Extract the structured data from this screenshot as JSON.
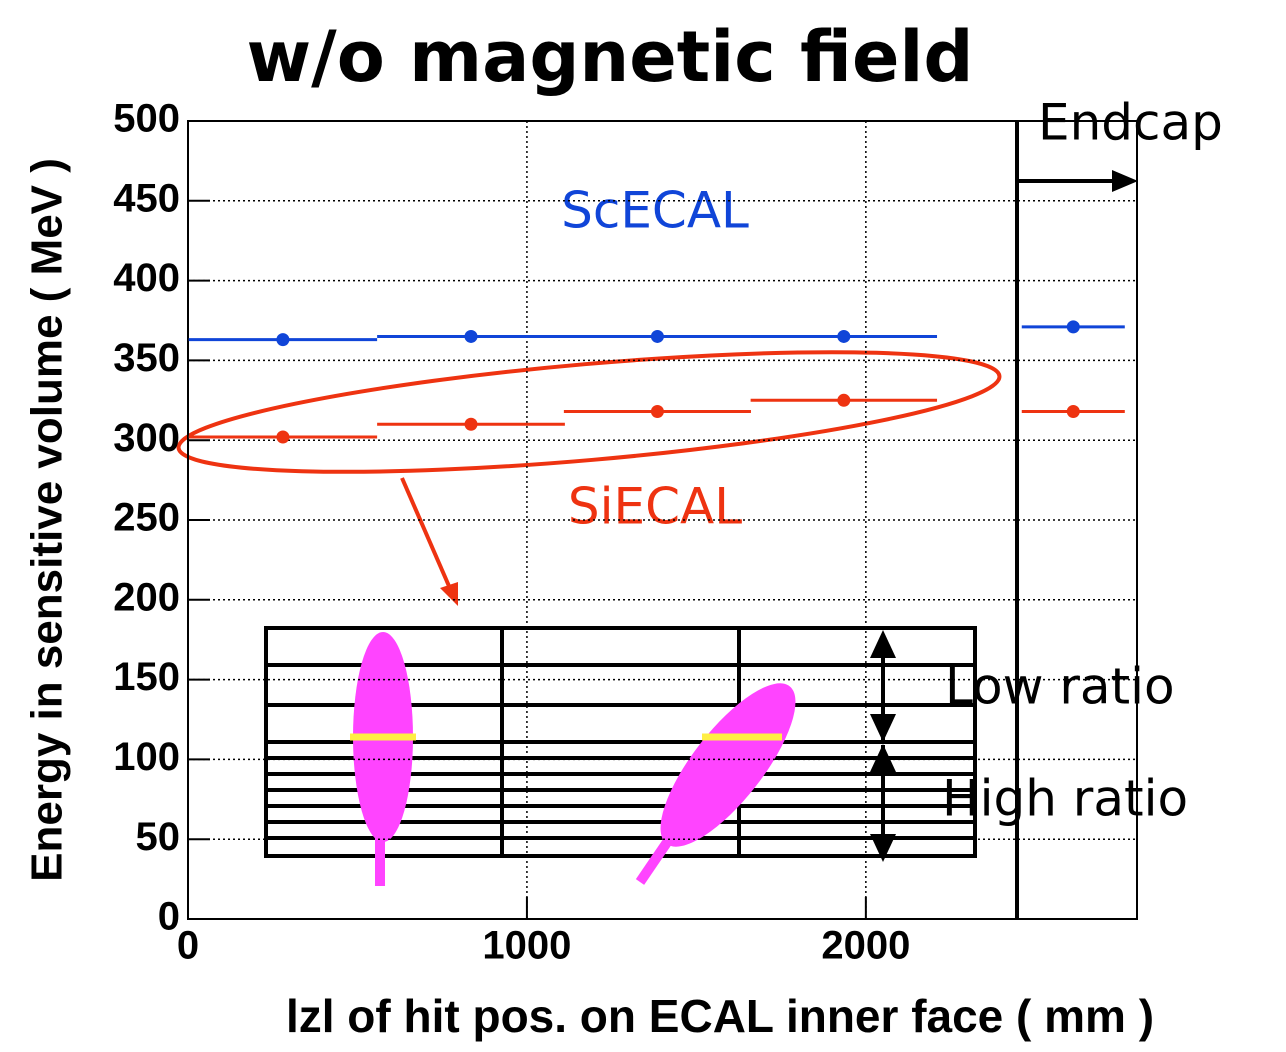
{
  "chart_data": {
    "type": "errorbar",
    "title": "w/o magnetic field",
    "x_label": "lzl of hit pos. on ECAL inner face ( mm )",
    "y_label": "Energy in sensitive volume ( MeV )",
    "xlim": [
      0,
      2800
    ],
    "ylim": [
      0,
      500
    ],
    "xticks": [
      0,
      1000,
      2000
    ],
    "yticks": [
      0,
      50,
      100,
      150,
      200,
      250,
      300,
      350,
      400,
      450,
      500
    ],
    "grid": true,
    "series": [
      {
        "name": "ScECAL",
        "color": "#1045d8",
        "x": [
          280,
          835,
          1385,
          1935,
          2612
        ],
        "xerr": [
          278,
          277,
          276,
          275,
          152
        ],
        "values": [
          363,
          365,
          365,
          365,
          371
        ]
      },
      {
        "name": "SiECAL",
        "color": "#ee3311",
        "x": [
          280,
          835,
          1385,
          1935,
          2612
        ],
        "xerr": [
          278,
          277,
          276,
          275,
          152
        ],
        "values": [
          302,
          310,
          318,
          325,
          318
        ]
      }
    ],
    "annotations": [
      "Endcap",
      "Low ratio",
      "High ratio"
    ]
  }
}
